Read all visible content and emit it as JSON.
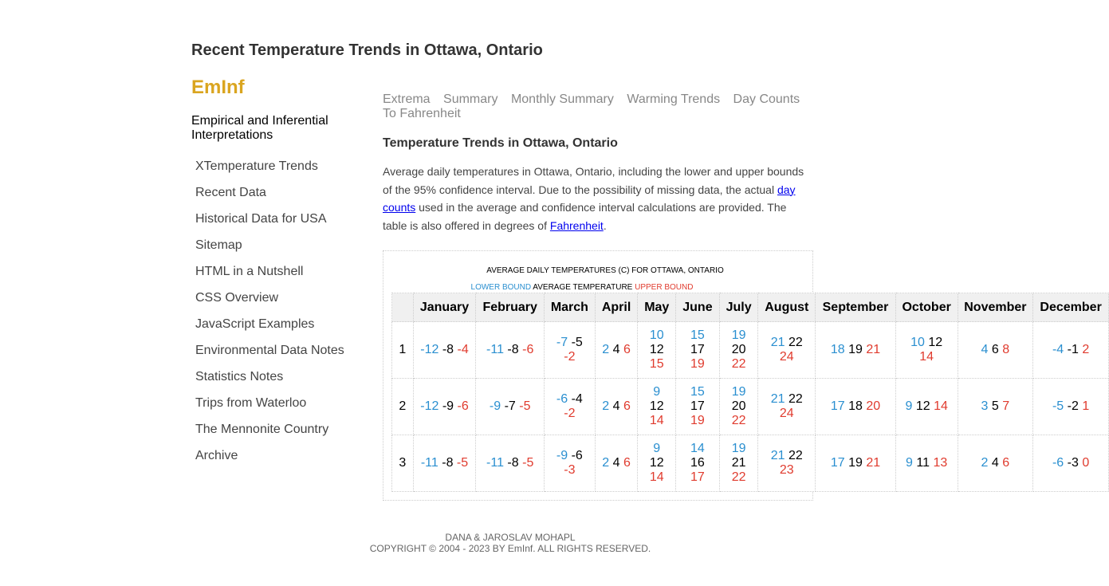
{
  "header": {
    "title": "Recent Temperature Trends in Ottawa, Ontario",
    "brand": "EmInf",
    "tagline": "Empirical and Inferential Interpretations"
  },
  "sidebar": {
    "items": [
      {
        "label": "XTemperature Trends"
      },
      {
        "label": "Recent Data"
      },
      {
        "label": "Historical Data for USA"
      },
      {
        "label": "Sitemap"
      },
      {
        "label": "HTML in a Nutshell"
      },
      {
        "label": "CSS Overview"
      },
      {
        "label": "JavaScript Examples"
      },
      {
        "label": "Environmental Data Notes"
      },
      {
        "label": "Statistics Notes"
      },
      {
        "label": "Trips from Waterloo"
      },
      {
        "label": "The Mennonite Country"
      },
      {
        "label": "Archive"
      }
    ]
  },
  "topnav": {
    "items": [
      "Extrema",
      "Summary",
      "Monthly Summary",
      "Warming Trends",
      "Day Counts",
      "To Fahrenheit"
    ]
  },
  "content": {
    "section_title": "Temperature Trends in Ottawa, Ontario",
    "intro_part1": "Average daily temperatures in Ottawa, Ontario, including the lower and upper bounds of the 95% confidence interval. Due to the possibility of missing data, the actual ",
    "intro_link1": "day counts",
    "intro_part2": " used in the average and confidence interval calculations are provided. The table is also offered in degrees of ",
    "intro_link2": "Fahrenheit",
    "intro_part3": "."
  },
  "table": {
    "caption": "AVERAGE DAILY TEMPERATURES (C) FOR OTTAWA, ONTARIO",
    "legend": {
      "lower": "LOWER BOUND",
      "avg": " AVERAGE TEMPERATURE ",
      "upper": "UPPER BOUND"
    },
    "months": [
      "January",
      "February",
      "March",
      "April",
      "May",
      "June",
      "July",
      "August",
      "September",
      "October",
      "November",
      "December"
    ],
    "rows": [
      {
        "day": "1",
        "cells": [
          [
            -12,
            -8,
            -4
          ],
          [
            -11,
            -8,
            -6
          ],
          [
            -7,
            -5,
            -2
          ],
          [
            2,
            4,
            6
          ],
          [
            10,
            12,
            15
          ],
          [
            15,
            17,
            19
          ],
          [
            19,
            20,
            22
          ],
          [
            21,
            22,
            24
          ],
          [
            18,
            19,
            21
          ],
          [
            10,
            12,
            14
          ],
          [
            4,
            6,
            8
          ],
          [
            -4,
            -1,
            2
          ]
        ]
      },
      {
        "day": "2",
        "cells": [
          [
            -12,
            -9,
            -6
          ],
          [
            -9,
            -7,
            -5
          ],
          [
            -6,
            -4,
            -2
          ],
          [
            2,
            4,
            6
          ],
          [
            9,
            12,
            14
          ],
          [
            15,
            17,
            19
          ],
          [
            19,
            20,
            22
          ],
          [
            21,
            22,
            24
          ],
          [
            17,
            18,
            20
          ],
          [
            9,
            12,
            14
          ],
          [
            3,
            5,
            7
          ],
          [
            -5,
            -2,
            1
          ]
        ]
      },
      {
        "day": "3",
        "cells": [
          [
            -11,
            -8,
            -5
          ],
          [
            -11,
            -8,
            -5
          ],
          [
            -9,
            -6,
            -3
          ],
          [
            2,
            4,
            6
          ],
          [
            9,
            12,
            14
          ],
          [
            14,
            16,
            17
          ],
          [
            19,
            21,
            22
          ],
          [
            21,
            22,
            23
          ],
          [
            17,
            19,
            21
          ],
          [
            9,
            11,
            13
          ],
          [
            2,
            4,
            6
          ],
          [
            -6,
            -3,
            0
          ]
        ]
      }
    ]
  },
  "footer": {
    "authors": "DANA & JAROSLAV MOHAPL",
    "copyright": "COPYRIGHT © 2004 - 2023 BY EmInf. ALL RIGHTS RESERVED."
  },
  "colors": {
    "brand": "#DAA520",
    "lower_bound": "#2a8fd0",
    "upper_bound": "#e03b2e",
    "link": "#0000EE"
  }
}
